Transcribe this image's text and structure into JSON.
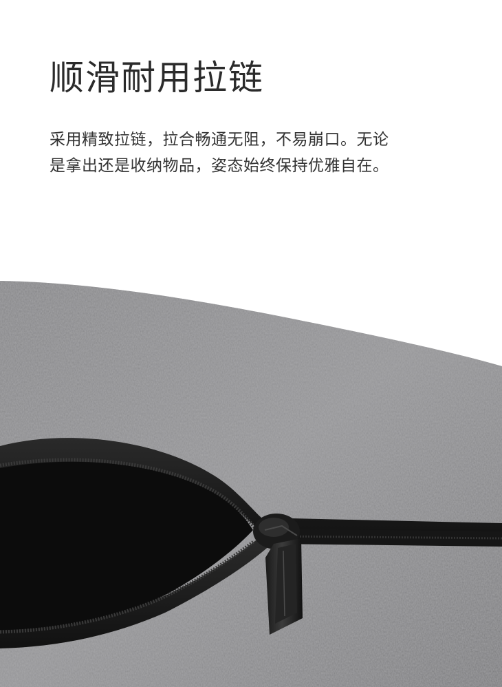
{
  "title": "顺滑耐用拉链",
  "description": {
    "line1": "采用精致拉链，拉合畅通无阻，不易崩口。无论",
    "line2": "是拿出还是收纳物品，姿态始终保持优雅自在。"
  },
  "colors": {
    "background": "#ffffff",
    "fabric": "#8a8a8c",
    "zipper_tape": "#1c1c1c",
    "interior": "#0d0d0d"
  },
  "photo": {
    "subject_icon": "zipper-pull-icon"
  }
}
